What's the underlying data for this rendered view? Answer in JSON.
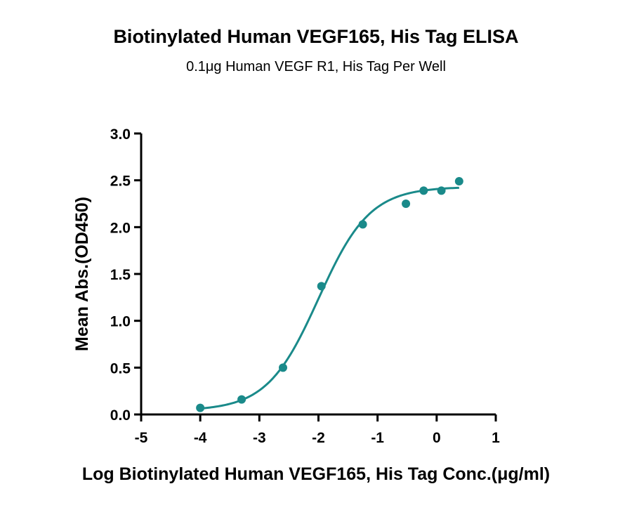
{
  "chart_data": {
    "type": "scatter",
    "title": "Biotinylated Human VEGF165, His Tag ELISA",
    "subtitle": "0.1μg Human VEGF R1, His Tag Per Well",
    "xlabel": "Log  Biotinylated Human VEGF165, His Tag Conc.(μg/ml)",
    "ylabel": "Mean Abs.(OD450)",
    "xlim": [
      -5,
      1
    ],
    "ylim": [
      0,
      3
    ],
    "xticks": [
      "-5",
      "-4",
      "-3",
      "-2",
      "-1",
      "0",
      "1"
    ],
    "yticks": [
      "0.0",
      "0.5",
      "1.0",
      "1.5",
      "2.0",
      "2.5",
      "3.0"
    ],
    "grid": false,
    "series": [
      {
        "color": "#1a8a8a",
        "x": [
          -4.0,
          -3.3,
          -2.6,
          -1.95,
          -1.25,
          -0.52,
          -0.22,
          0.08,
          0.38
        ],
        "y": [
          0.07,
          0.16,
          0.5,
          1.37,
          2.03,
          2.25,
          2.39,
          2.39,
          2.49
        ],
        "fit": {
          "model": "4PL",
          "bottom": 0.04,
          "top": 2.43,
          "logEC50": -2.0,
          "hill": 1.0,
          "x_range": [
            -4.0,
            0.38
          ]
        }
      }
    ]
  }
}
